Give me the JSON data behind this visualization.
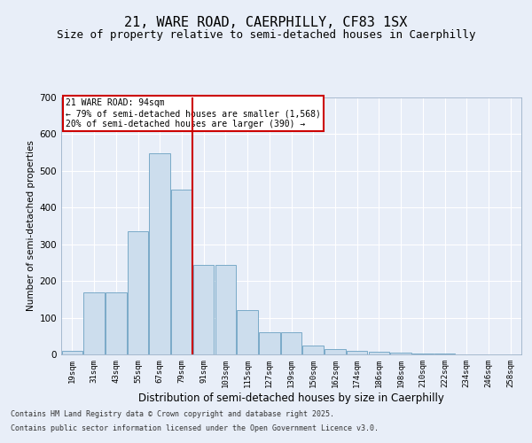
{
  "title1": "21, WARE ROAD, CAERPHILLY, CF83 1SX",
  "title2": "Size of property relative to semi-detached houses in Caerphilly",
  "xlabel": "Distribution of semi-detached houses by size in Caerphilly",
  "ylabel": "Number of semi-detached properties",
  "categories": [
    "19sqm",
    "31sqm",
    "43sqm",
    "55sqm",
    "67sqm",
    "79sqm",
    "91sqm",
    "103sqm",
    "115sqm",
    "127sqm",
    "139sqm",
    "150sqm",
    "162sqm",
    "174sqm",
    "186sqm",
    "198sqm",
    "210sqm",
    "222sqm",
    "234sqm",
    "246sqm",
    "258sqm"
  ],
  "values": [
    10,
    170,
    170,
    335,
    548,
    450,
    245,
    245,
    120,
    60,
    60,
    25,
    15,
    10,
    8,
    5,
    3,
    2,
    1,
    1,
    0
  ],
  "bar_color": "#ccdded",
  "bar_edge_color": "#7aaac8",
  "vline_color": "#cc0000",
  "vline_pos": 5.5,
  "annotation_title": "21 WARE ROAD: 94sqm",
  "annotation_line1": "← 79% of semi-detached houses are smaller (1,568)",
  "annotation_line2": "20% of semi-detached houses are larger (390) →",
  "annotation_box_color": "#cc0000",
  "footer1": "Contains HM Land Registry data © Crown copyright and database right 2025.",
  "footer2": "Contains public sector information licensed under the Open Government Licence v3.0.",
  "ylim": [
    0,
    700
  ],
  "yticks": [
    0,
    100,
    200,
    300,
    400,
    500,
    600,
    700
  ],
  "bg_color": "#e8eef8",
  "grid_color": "#ffffff",
  "title1_fontsize": 11,
  "title2_fontsize": 9,
  "footer_fontsize": 6
}
